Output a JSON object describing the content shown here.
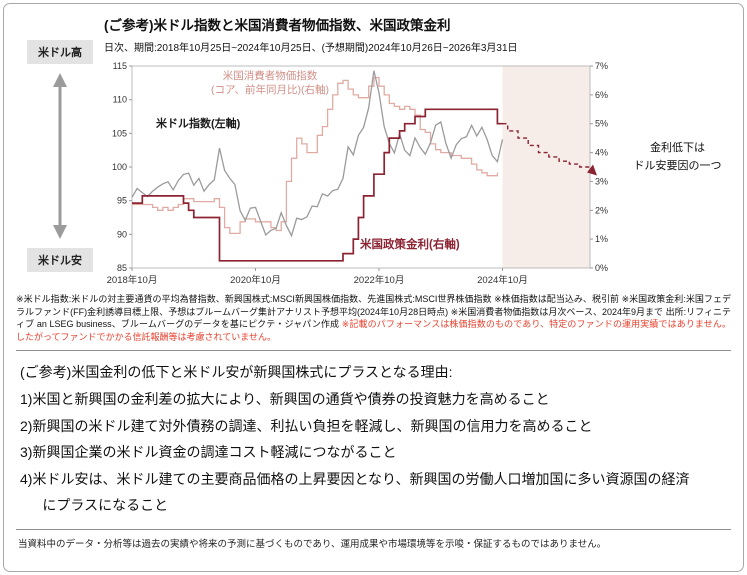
{
  "page": {
    "title": "(ご参考)米ドル指数と米国消費者物価指数、米国政策金利",
    "subtitle": "日次、期間:2018年10月25日~2024年10月25日、(予想期間)2024年10月26日~2026年3月31日"
  },
  "side": {
    "usd_high": "米ドル高",
    "usd_low": "米ドル安"
  },
  "chart_annotations": {
    "cpi_line1": "米国消費者物価指数",
    "cpi_line2": "(コア、前年同月比)(右軸)",
    "usd_label": "米ドル指数(左軸)",
    "policy_label": "米国政策金利(右軸)",
    "right_note_line1": "金利低下は",
    "right_note_line2": "ドル安要因の一つ"
  },
  "chart_data": {
    "type": "line",
    "x_unit": "months from 2018-10",
    "x_total_months": 89,
    "x_ticks": [
      {
        "month": 0,
        "label": "2018年10月"
      },
      {
        "month": 24,
        "label": "2020年10月"
      },
      {
        "month": 48,
        "label": "2022年10月"
      },
      {
        "month": 72,
        "label": "2024年10月"
      }
    ],
    "left_axis": {
      "min": 85,
      "max": 115,
      "ticks": [
        115,
        110,
        105,
        100,
        95,
        90,
        85
      ]
    },
    "right_axis": {
      "min": 0,
      "max": 7,
      "ticks": [
        7,
        6,
        5,
        4,
        3,
        2,
        1,
        0
      ],
      "suffix": "%"
    },
    "forecast_region": {
      "start_month": 72,
      "end_month": 89,
      "color": "#f6ece8"
    },
    "series": [
      {
        "id": "core-cpi",
        "name": "米国消費者物価指数(コア、前年同月比)(右軸)",
        "axis": "right",
        "style": "step",
        "color": "#e0aba3",
        "width": 1.3,
        "start_month": 0,
        "values": [
          2.2,
          2.2,
          2.2,
          2.2,
          2.1,
          2.0,
          2.1,
          2.0,
          2.1,
          2.2,
          2.4,
          2.4,
          2.3,
          2.3,
          2.3,
          2.3,
          2.4,
          2.1,
          1.4,
          1.2,
          1.2,
          1.6,
          1.7,
          1.7,
          1.6,
          1.6,
          1.6,
          1.4,
          1.3,
          1.6,
          3.0,
          3.8,
          4.5,
          4.3,
          4.0,
          4.0,
          4.6,
          4.9,
          5.5,
          6.0,
          6.4,
          6.5,
          6.2,
          6.0,
          5.9,
          5.9,
          6.3,
          6.6,
          6.3,
          6.0,
          5.7,
          5.6,
          5.5,
          5.6,
          5.5,
          5.3,
          4.8,
          4.7,
          4.3,
          4.1,
          4.0,
          4.0,
          3.9,
          3.9,
          3.8,
          3.8,
          3.6,
          3.4,
          3.3,
          3.2,
          3.2,
          3.3
        ]
      },
      {
        "id": "usd-index",
        "name": "米ドル指数(左軸)",
        "axis": "left",
        "style": "line",
        "color": "#9b9b9b",
        "width": 1.3,
        "start_month": 0,
        "values": [
          95.5,
          96.8,
          96.2,
          95.6,
          96.4,
          97.0,
          97.5,
          97.8,
          96.6,
          98.0,
          98.9,
          99.1,
          97.3,
          98.3,
          96.4,
          97.4,
          98.1,
          102.8,
          99.5,
          98.3,
          97.4,
          93.5,
          92.1,
          93.9,
          94.0,
          91.9,
          89.9,
          90.6,
          90.9,
          93.2,
          91.3,
          89.8,
          92.4,
          92.2,
          92.6,
          94.2,
          94.1,
          96.0,
          95.7,
          96.5,
          96.7,
          98.3,
          103.0,
          101.8,
          104.7,
          105.9,
          108.8,
          114.3,
          111.0,
          106.0,
          103.5,
          102.1,
          104.9,
          102.5,
          101.7,
          104.3,
          102.9,
          101.9,
          103.6,
          106.2,
          106.7,
          103.5,
          101.3,
          103.3,
          104.2,
          104.5,
          106.2,
          104.6,
          105.9,
          104.1,
          101.7,
          100.8,
          104.1
        ]
      },
      {
        "id": "policy-rate",
        "name": "米国政策金利(右軸)",
        "axis": "right",
        "style": "step",
        "color": "#8c2333",
        "width": 1.7,
        "points": [
          [
            0,
            2.25
          ],
          [
            2,
            2.5
          ],
          [
            10,
            2.25
          ],
          [
            11,
            2.0
          ],
          [
            12,
            1.75
          ],
          [
            17,
            0.25
          ],
          [
            41,
            0.5
          ],
          [
            43,
            1.0
          ],
          [
            44,
            1.75
          ],
          [
            45,
            2.5
          ],
          [
            47,
            3.25
          ],
          [
            49,
            4.0
          ],
          [
            50,
            4.5
          ],
          [
            52,
            4.75
          ],
          [
            53,
            5.0
          ],
          [
            55,
            5.25
          ],
          [
            57,
            5.5
          ],
          [
            71,
            5.0
          ],
          [
            72,
            5.0
          ]
        ]
      },
      {
        "id": "policy-rate-forecast",
        "name": "米国政策金利予想(右軸)",
        "axis": "right",
        "style": "step-dashed",
        "color": "#8c2333",
        "width": 1.4,
        "arrow_end": true,
        "points": [
          [
            72,
            5.0
          ],
          [
            73,
            4.75
          ],
          [
            75,
            4.5
          ],
          [
            77,
            4.25
          ],
          [
            79,
            4.0
          ],
          [
            81,
            3.85
          ],
          [
            83,
            3.7
          ],
          [
            85,
            3.6
          ],
          [
            87,
            3.5
          ],
          [
            89,
            3.45
          ]
        ]
      }
    ]
  },
  "footnotes": {
    "main": "※米ドル指数:米ドルの対主要通貨の平均為替指数、新興国株式:MSCI新興国株価指数、先進国株式:MSCI世界株価指数 ※株価指数は配当込み、税引前 ※米国政策金利:米国フェデラルファンド(FF)金利誘導目標上限、予想はブルームバーグ集計アナリスト予想平均(2024年10月28日時点) ※米国消費者物価指数は月次ベース、2024年9月まで 出所:リフィニティブ an LSEG business、ブルームバーグのデータを基にピクテ・ジャパン作成 ",
    "warning_red": "※記載のパフォーマンスは株価指数のものであり、特定のファンドの運用実績ではありません。したがってファンドでかかる信託報酬等は考慮されていません。"
  },
  "reasons": {
    "heading": "(ご参考)米国金利の低下と米ドル安が新興国株式にプラスとなる理由:",
    "items": [
      "1)米国と新興国の金利差の拡大により、新興国の通貨や債券の投資魅力を高めること",
      "2)新興国の米ドル建て対外債務の調達、利払い負担を軽減し、新興国の信用力を高めること",
      "3)新興国企業の米ドル資金の調達コスト軽減につながること",
      "4)米ドル安は、米ドル建ての主要商品価格の上昇要因となり、新興国の労働人口増加国に多い資源国の経済にプラスになること"
    ]
  },
  "footer": "当資料中のデータ・分析等は過去の実績や将来の予測に基づくものであり、運用成果や市場環境等を示唆・保証するものではありません。"
}
